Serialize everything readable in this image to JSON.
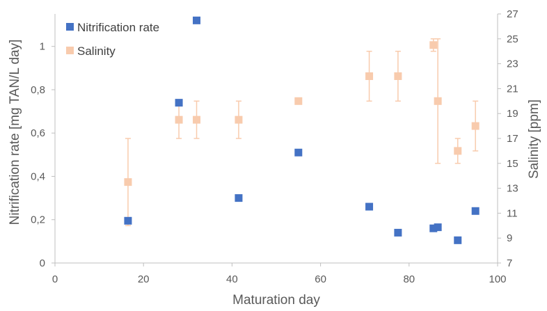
{
  "chart_data": {
    "type": "scatter",
    "xlabel": "Maturation day",
    "ylabel_left": "Nitrification rate [mg TAN/L day]",
    "ylabel_right": "Salinity [ppm]",
    "xlim": [
      0,
      100
    ],
    "ylim_left": [
      0,
      1.15
    ],
    "ylim_right": [
      7,
      27
    ],
    "x_ticks": [
      "0",
      "20",
      "40",
      "60",
      "80",
      "100"
    ],
    "y_left_ticks": [
      "0",
      "0,2",
      "0,4",
      "0,6",
      "0,8",
      "1"
    ],
    "y_right_ticks": [
      "7",
      "9",
      "11",
      "13",
      "15",
      "17",
      "19",
      "21",
      "23",
      "25",
      "27"
    ],
    "grid": false,
    "legend_position": "top-left",
    "series": [
      {
        "name": "Nitrification rate",
        "axis": "left",
        "color": "#4472c4",
        "marker": "square",
        "points": [
          {
            "x": 16.5,
            "y": 0.195
          },
          {
            "x": 28,
            "y": 0.74
          },
          {
            "x": 32,
            "y": 1.12
          },
          {
            "x": 41.5,
            "y": 0.3
          },
          {
            "x": 55,
            "y": 0.51
          },
          {
            "x": 71,
            "y": 0.26
          },
          {
            "x": 77.5,
            "y": 0.14
          },
          {
            "x": 85.5,
            "y": 0.16
          },
          {
            "x": 86.5,
            "y": 0.165
          },
          {
            "x": 91,
            "y": 0.105
          },
          {
            "x": 95,
            "y": 0.24
          }
        ]
      },
      {
        "name": "Salinity",
        "axis": "right",
        "color": "#f8cbad",
        "marker": "square",
        "points": [
          {
            "x": 16.5,
            "y": 13.5,
            "err_low": 10,
            "err_high": 17
          },
          {
            "x": 28,
            "y": 18.5,
            "err_low": 17,
            "err_high": 20
          },
          {
            "x": 32,
            "y": 18.5,
            "err_low": 17,
            "err_high": 20
          },
          {
            "x": 41.5,
            "y": 18.5,
            "err_low": 17,
            "err_high": 20
          },
          {
            "x": 55,
            "y": 20,
            "err_low": 20,
            "err_high": 20
          },
          {
            "x": 71,
            "y": 22,
            "err_low": 20,
            "err_high": 24
          },
          {
            "x": 77.5,
            "y": 22,
            "err_low": 20,
            "err_high": 24
          },
          {
            "x": 85.5,
            "y": 24.5,
            "err_low": 24,
            "err_high": 25
          },
          {
            "x": 86.5,
            "y": 20,
            "err_low": 15,
            "err_high": 25
          },
          {
            "x": 91,
            "y": 16,
            "err_low": 15,
            "err_high": 17
          },
          {
            "x": 95,
            "y": 18,
            "err_low": 16,
            "err_high": 20
          }
        ]
      }
    ]
  }
}
